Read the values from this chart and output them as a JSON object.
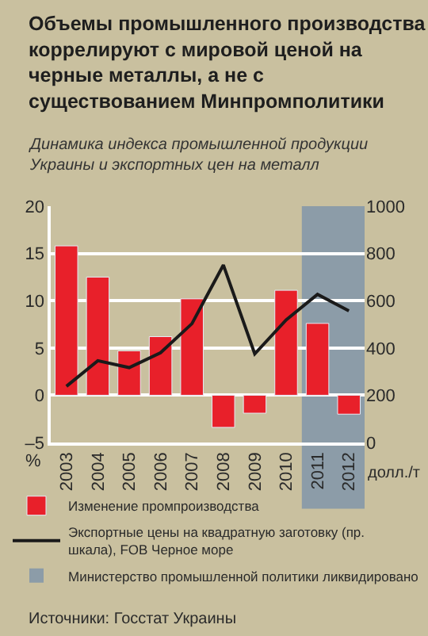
{
  "chart_data": {
    "type": "bar",
    "title": "Объемы промышленного производства коррелируют с мировой ценой на черные металлы, а не с существованием Минпромполитики",
    "subtitle": "Динамика индекса промышленной продукции Украины и экспортных цен на металл",
    "ylabel": "%",
    "y2label": "долл./т",
    "categories": [
      "2003",
      "2004",
      "2005",
      "2006",
      "2007",
      "2008",
      "2009",
      "2010",
      "2011",
      "2012"
    ],
    "series": [
      {
        "name": "Изменение промпроизводства",
        "color": "#e8202a",
        "values": [
          15.8,
          12.5,
          4.7,
          6.2,
          10.2,
          -3.4,
          -1.9,
          11.1,
          7.6,
          -2.0
        ]
      },
      {
        "name": "Экспортные цены на квадратную заготовку (пр. шкала), FOB Черное море",
        "type": "line",
        "axis": "y2",
        "color": "#1a1a1a",
        "values": [
          238,
          346,
          317,
          380,
          503,
          751,
          375,
          519,
          627,
          557
        ]
      }
    ],
    "bands": [
      {
        "axis": "x",
        "from": "2011",
        "to": "2012",
        "label": "Министерство промышленной политики ликвидировано",
        "color": "#8c9ca8"
      }
    ],
    "ylim": [
      -5,
      20
    ],
    "yticks": [
      {
        "value": -5,
        "label": "–5"
      },
      0,
      5,
      10,
      15,
      20
    ],
    "y2lim": [
      0,
      1000
    ],
    "y2ticks": [
      0,
      200,
      400,
      600,
      800,
      1000
    ],
    "grid": "y",
    "legend": "bottom",
    "annotations": [
      "Источники: Госстат Украины"
    ]
  }
}
